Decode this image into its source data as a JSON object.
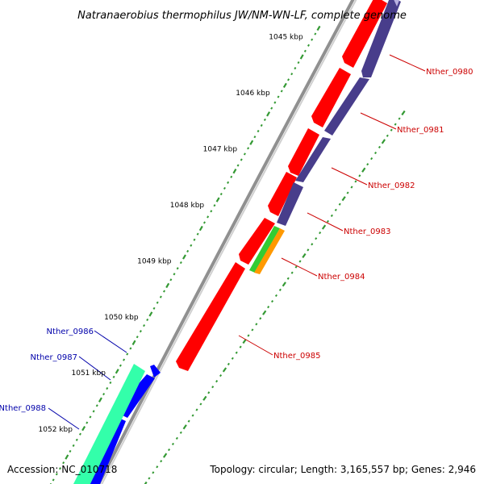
{
  "title": "Natranaerobius thermophilus JW/NM-WN-LF, complete genome",
  "footer": {
    "accession": "Accession: NC_010718",
    "topology": "Topology: circular; Length: 3,165,557 bp; Genes: 2,946"
  },
  "kbp_ticks": [
    {
      "label": "1045 kbp",
      "t": 0.022
    },
    {
      "label": "1046 kbp",
      "t": 0.145
    },
    {
      "label": "1047 kbp",
      "t": 0.267
    },
    {
      "label": "1048 kbp",
      "t": 0.39
    },
    {
      "label": "1049 kbp",
      "t": 0.512
    },
    {
      "label": "1050 kbp",
      "t": 0.635
    },
    {
      "label": "1051 kbp",
      "t": 0.757
    },
    {
      "label": "1052 kbp",
      "t": 0.88
    }
  ],
  "genes": [
    {
      "label": "Nther_0980",
      "side": "right",
      "color": "#cc0000"
    },
    {
      "label": "Nther_0981",
      "side": "right",
      "color": "#cc0000"
    },
    {
      "label": "Nther_0982",
      "side": "right",
      "color": "#cc0000"
    },
    {
      "label": "Nther_0983",
      "side": "right",
      "color": "#cc0000"
    },
    {
      "label": "Nther_0984",
      "side": "right",
      "color": "#cc0000"
    },
    {
      "label": "Nther_0985",
      "side": "right",
      "color": "#cc0000"
    },
    {
      "label": "Nther_0986",
      "side": "left",
      "color": "#0000aa"
    },
    {
      "label": "Nther_0987",
      "side": "left",
      "color": "#0000aa"
    },
    {
      "label": "Nther_0988",
      "side": "left",
      "color": "#0000aa"
    }
  ],
  "colors": {
    "forward_cds": "#ff0000",
    "forward_cds_dark": "#483d8b",
    "reverse_cds": "#0000ff",
    "reverse_rna": "#33ffaa",
    "green_feature": "#33cc33",
    "orange_feature": "#ff9900",
    "backbone": "#808080",
    "tick_dots": "#339933"
  }
}
